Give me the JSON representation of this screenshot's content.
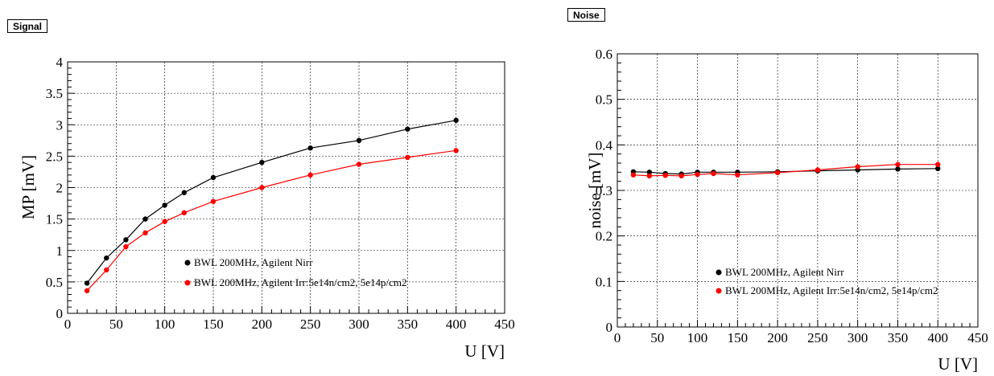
{
  "chart_data": [
    {
      "type": "line",
      "tag": "Signal",
      "title": "",
      "xlabel": "U [V]",
      "ylabel": "MP [mV]",
      "xlim": [
        0,
        450
      ],
      "ylim": [
        0,
        4
      ],
      "xticks": [
        0,
        50,
        100,
        150,
        200,
        250,
        300,
        350,
        400,
        450
      ],
      "yticks": [
        0,
        0.5,
        1,
        1.5,
        2,
        2.5,
        3,
        3.5,
        4
      ],
      "grid": true,
      "legend_position": "bottom-right",
      "series": [
        {
          "name": "BWL 200MHz, Agilent Nirr",
          "color": "#000000",
          "x": [
            20,
            40,
            60,
            80,
            100,
            120,
            150,
            200,
            250,
            300,
            350,
            400
          ],
          "y": [
            0.48,
            0.88,
            1.17,
            1.5,
            1.72,
            1.92,
            2.16,
            2.4,
            2.63,
            2.75,
            2.93,
            3.07
          ]
        },
        {
          "name": "BWL 200MHz, Agilent Irr:5e14n/cm2, 5e14p/cm2",
          "color": "#ff0000",
          "x": [
            20,
            40,
            60,
            80,
            100,
            120,
            150,
            200,
            250,
            300,
            350,
            400
          ],
          "y": [
            0.36,
            0.69,
            1.06,
            1.28,
            1.46,
            1.6,
            1.78,
            2.0,
            2.2,
            2.37,
            2.48,
            2.59
          ]
        }
      ]
    },
    {
      "type": "line",
      "tag": "Noise",
      "title": "",
      "xlabel": "U [V]",
      "ylabel": "noise [mV]",
      "xlim": [
        0,
        450
      ],
      "ylim": [
        0,
        0.6
      ],
      "xticks": [
        0,
        50,
        100,
        150,
        200,
        250,
        300,
        350,
        400,
        450
      ],
      "yticks": [
        0,
        0.1,
        0.2,
        0.3,
        0.4,
        0.5,
        0.6
      ],
      "grid": true,
      "legend_position": "bottom-right",
      "series": [
        {
          "name": "BWL 200MHz, Agilent Nirr",
          "color": "#000000",
          "x": [
            20,
            40,
            60,
            80,
            100,
            120,
            150,
            200,
            250,
            300,
            350,
            400
          ],
          "y": [
            0.341,
            0.34,
            0.337,
            0.336,
            0.34,
            0.34,
            0.34,
            0.341,
            0.343,
            0.345,
            0.347,
            0.348
          ]
        },
        {
          "name": "BWL 200MHz, Agilent Irr:5e14n/cm2, 5e14p/cm2",
          "color": "#ff0000",
          "x": [
            20,
            40,
            60,
            80,
            100,
            120,
            150,
            200,
            250,
            300,
            350,
            400
          ],
          "y": [
            0.334,
            0.332,
            0.333,
            0.332,
            0.335,
            0.337,
            0.334,
            0.339,
            0.345,
            0.352,
            0.357,
            0.357
          ]
        }
      ]
    }
  ]
}
